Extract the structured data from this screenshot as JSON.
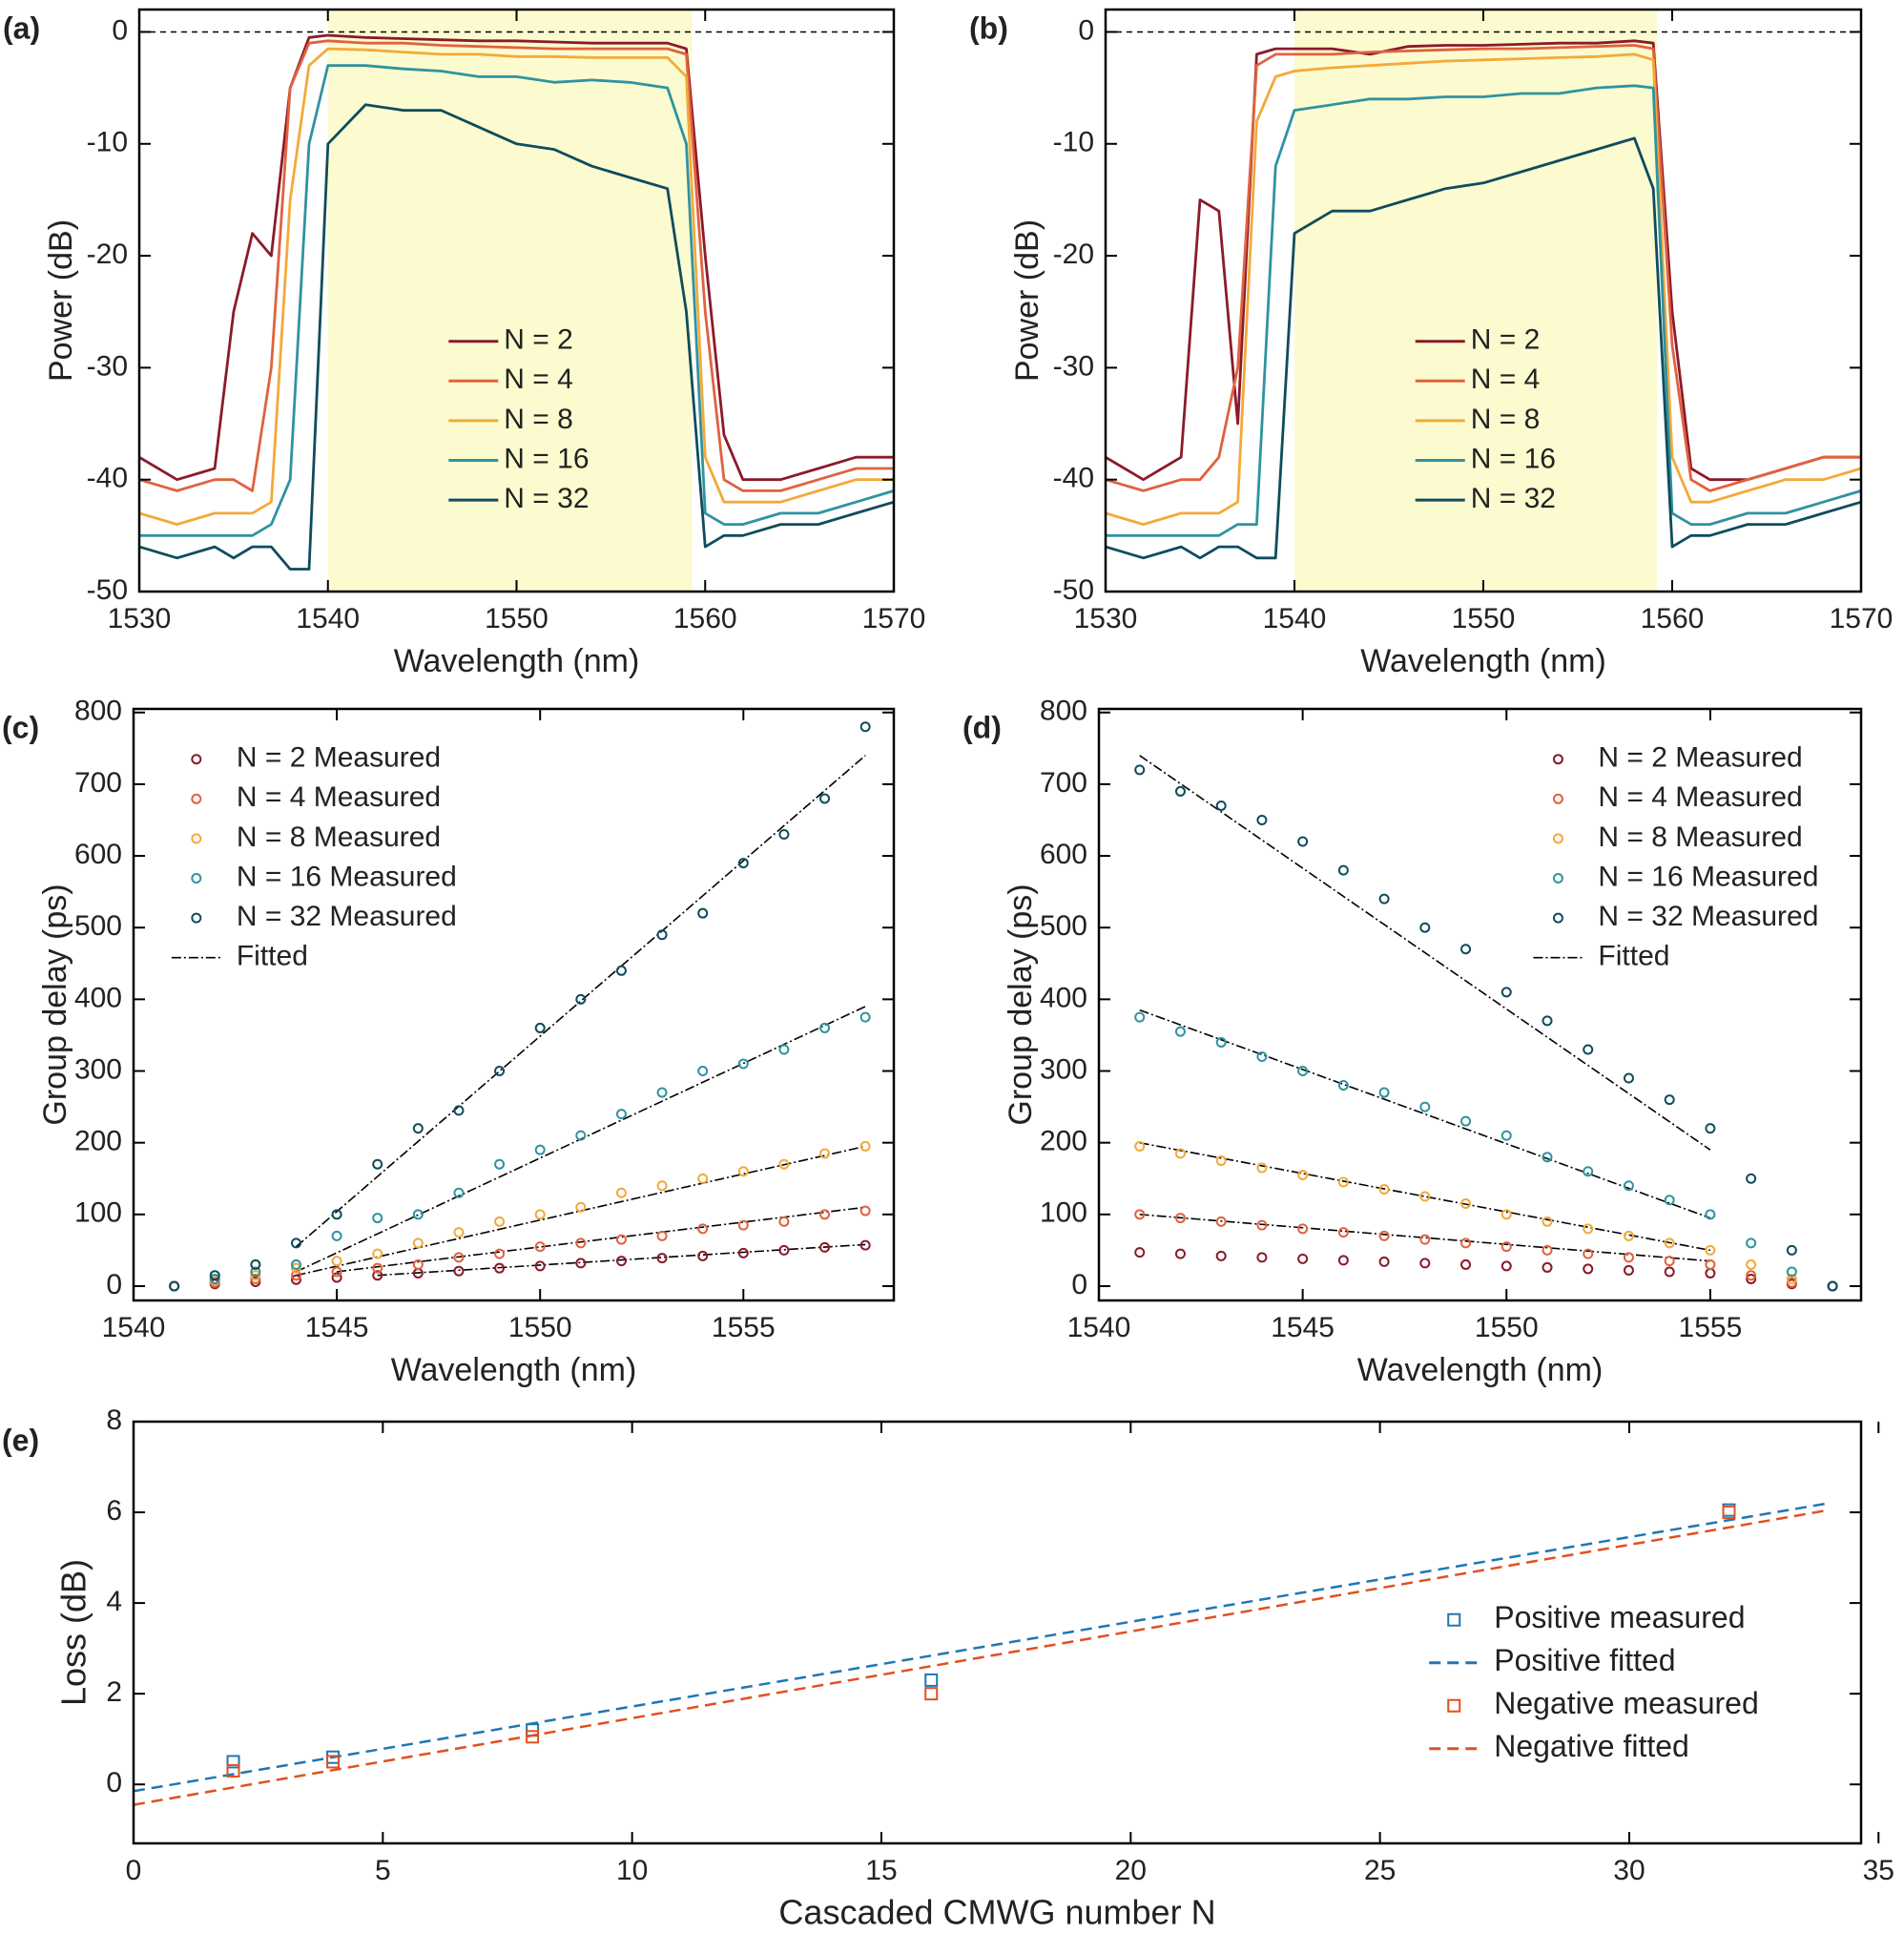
{
  "chart_data": [
    {
      "type": "line",
      "label": "(a)",
      "xlabel": "Wavelength (nm)",
      "ylabel": "Power (dB)",
      "x": [
        1530,
        1532,
        1534,
        1535,
        1536,
        1537,
        1538,
        1539,
        1540,
        1542,
        1544,
        1546,
        1548,
        1550,
        1552,
        1554,
        1556,
        1558,
        1559,
        1560,
        1561,
        1562,
        1564,
        1566,
        1568,
        1570
      ],
      "xlim": [
        1530,
        1570
      ],
      "xticks": [
        1530,
        1540,
        1550,
        1560,
        1570
      ],
      "ylim": [
        -50,
        2
      ],
      "yticks": [
        0,
        -10,
        -20,
        -30,
        -40,
        -50
      ],
      "shaded_range": [
        1540,
        1559.3
      ],
      "shade_color": "#fbfbcf",
      "reference_line": 0,
      "legend": "center",
      "series": [
        {
          "name": "N = 2",
          "color": "#8b1a2b",
          "values": [
            -38,
            -40,
            -39,
            -25,
            -18,
            -20,
            -5,
            -0.5,
            -0.3,
            -0.5,
            -0.6,
            -0.7,
            -0.8,
            -0.8,
            -0.9,
            -1,
            -1,
            -1,
            -1.5,
            -20,
            -36,
            -40,
            -40,
            -39,
            -38,
            -38
          ]
        },
        {
          "name": "N = 4",
          "color": "#e0623f",
          "values": [
            -40,
            -41,
            -40,
            -40,
            -41,
            -30,
            -5,
            -1,
            -0.8,
            -1,
            -1,
            -1.2,
            -1.3,
            -1.4,
            -1.5,
            -1.5,
            -1.5,
            -1.5,
            -2,
            -25,
            -40,
            -41,
            -41,
            -40,
            -39,
            -39
          ]
        },
        {
          "name": "N = 8",
          "color": "#f4a93a",
          "values": [
            -43,
            -44,
            -43,
            -43,
            -43,
            -42,
            -15,
            -3,
            -1.5,
            -1.6,
            -1.8,
            -2,
            -2,
            -2.2,
            -2.2,
            -2.3,
            -2.3,
            -2.3,
            -4,
            -38,
            -42,
            -42,
            -42,
            -41,
            -40,
            -40
          ]
        },
        {
          "name": "N = 16",
          "color": "#2f93a0",
          "values": [
            -45,
            -45,
            -45,
            -45,
            -45,
            -44,
            -40,
            -10,
            -3,
            -3,
            -3.3,
            -3.5,
            -4,
            -4,
            -4.5,
            -4.3,
            -4.5,
            -5,
            -10,
            -43,
            -44,
            -44,
            -43,
            -43,
            -42,
            -41
          ]
        },
        {
          "name": "N = 32",
          "color": "#0f4c5c",
          "values": [
            -46,
            -47,
            -46,
            -47,
            -46,
            -46,
            -48,
            -48,
            -10,
            -6.5,
            -7,
            -7,
            -8.5,
            -10,
            -10.5,
            -12,
            -13,
            -14,
            -25,
            -46,
            -45,
            -45,
            -44,
            -44,
            -43,
            -42
          ]
        }
      ]
    },
    {
      "type": "line",
      "label": "(b)",
      "xlabel": "Wavelength (nm)",
      "ylabel": "Power (dB)",
      "x": [
        1530,
        1532,
        1534,
        1535,
        1536,
        1537,
        1538,
        1539,
        1540,
        1542,
        1544,
        1546,
        1548,
        1550,
        1552,
        1554,
        1556,
        1558,
        1559,
        1560,
        1561,
        1562,
        1564,
        1566,
        1568,
        1570
      ],
      "xlim": [
        1530,
        1570
      ],
      "xticks": [
        1530,
        1540,
        1550,
        1560,
        1570
      ],
      "ylim": [
        -50,
        2
      ],
      "yticks": [
        0,
        -10,
        -20,
        -30,
        -40,
        -50
      ],
      "shaded_range": [
        1540,
        1559.2
      ],
      "shade_color": "#fbfbcf",
      "reference_line": 0,
      "legend": "center",
      "series": [
        {
          "name": "N = 2",
          "color": "#8b1a2b",
          "values": [
            -38,
            -40,
            -38,
            -15,
            -16,
            -35,
            -2,
            -1.5,
            -1.5,
            -1.5,
            -2,
            -1.3,
            -1.2,
            -1.2,
            -1.1,
            -1,
            -1,
            -0.8,
            -1,
            -25,
            -39,
            -40,
            -40,
            -39,
            -38,
            -38
          ]
        },
        {
          "name": "N = 4",
          "color": "#e0623f",
          "values": [
            -40,
            -41,
            -40,
            -40,
            -38,
            -30,
            -3,
            -2,
            -2,
            -2,
            -1.8,
            -1.7,
            -1.6,
            -1.5,
            -1.5,
            -1.4,
            -1.3,
            -1.2,
            -1.5,
            -28,
            -40,
            -41,
            -40,
            -39,
            -38,
            -38
          ]
        },
        {
          "name": "N = 8",
          "color": "#f4a93a",
          "values": [
            -43,
            -44,
            -43,
            -43,
            -43,
            -42,
            -8,
            -4,
            -3.5,
            -3.2,
            -3,
            -2.8,
            -2.6,
            -2.5,
            -2.4,
            -2.3,
            -2.2,
            -2,
            -2.5,
            -38,
            -42,
            -42,
            -41,
            -40,
            -40,
            -39
          ]
        },
        {
          "name": "N = 16",
          "color": "#2f93a0",
          "values": [
            -45,
            -45,
            -45,
            -45,
            -45,
            -44,
            -44,
            -12,
            -7,
            -6.5,
            -6,
            -6,
            -5.8,
            -5.8,
            -5.5,
            -5.5,
            -5,
            -4.8,
            -5,
            -43,
            -44,
            -44,
            -43,
            -43,
            -42,
            -41
          ]
        },
        {
          "name": "N = 32",
          "color": "#0f4c5c",
          "values": [
            -46,
            -47,
            -46,
            -47,
            -46,
            -46,
            -47,
            -47,
            -18,
            -16,
            -16,
            -15,
            -14,
            -13.5,
            -12.5,
            -11.5,
            -10.5,
            -9.5,
            -14,
            -46,
            -45,
            -45,
            -44,
            -44,
            -43,
            -42
          ]
        }
      ]
    },
    {
      "type": "scatter",
      "label": "(c)",
      "xlabel": "Wavelength (nm)",
      "ylabel": "Group delay (ps)",
      "x": [
        1541,
        1542,
        1543,
        1544,
        1545,
        1546,
        1547,
        1548,
        1549,
        1550,
        1551,
        1552,
        1553,
        1554,
        1555,
        1556,
        1557,
        1558
      ],
      "xlim": [
        1540,
        1558.7
      ],
      "xticks": [
        1540,
        1545,
        1550,
        1555
      ],
      "ylim": [
        -20,
        805
      ],
      "yticks": [
        0,
        100,
        200,
        300,
        400,
        500,
        600,
        700,
        800
      ],
      "legend": "upper left",
      "series": [
        {
          "name": "N = 2   Measured",
          "color": "#8b1a2b",
          "values": [
            0,
            3,
            6,
            9,
            12,
            15,
            18,
            21,
            25,
            28,
            32,
            35,
            39,
            42,
            46,
            50,
            54,
            57
          ]
        },
        {
          "name": "N = 4   Measured",
          "color": "#e0623f",
          "values": [
            0,
            5,
            10,
            15,
            20,
            25,
            30,
            40,
            45,
            55,
            60,
            65,
            70,
            80,
            85,
            90,
            100,
            105
          ]
        },
        {
          "name": "N = 8   Measured",
          "color": "#f4a93a",
          "values": [
            0,
            8,
            15,
            25,
            35,
            45,
            60,
            75,
            90,
            100,
            110,
            130,
            140,
            150,
            160,
            170,
            185,
            195
          ]
        },
        {
          "name": "N = 16 Measured",
          "color": "#2f93a0",
          "values": [
            0,
            10,
            20,
            30,
            70,
            95,
            100,
            130,
            170,
            190,
            210,
            240,
            270,
            300,
            310,
            330,
            360,
            375
          ]
        },
        {
          "name": "N = 32 Measured",
          "color": "#0f4c5c",
          "values": [
            0,
            15,
            30,
            60,
            100,
            170,
            220,
            245,
            300,
            360,
            400,
            440,
            490,
            520,
            590,
            630,
            680,
            780
          ]
        }
      ],
      "fit": {
        "name": "Fitted",
        "color": "#000000",
        "lines": [
          {
            "x": [
              1546,
              1558
            ],
            "values": [
              15,
              58
            ]
          },
          {
            "x": [
              1545,
              1558
            ],
            "values": [
              20,
              110
            ]
          },
          {
            "x": [
              1544,
              1558
            ],
            "values": [
              15,
              195
            ]
          },
          {
            "x": [
              1544,
              1558
            ],
            "values": [
              20,
              390
            ]
          },
          {
            "x": [
              1544,
              1558
            ],
            "values": [
              55,
              740
            ]
          }
        ]
      }
    },
    {
      "type": "scatter",
      "label": "(d)",
      "xlabel": "Wavelength (nm)",
      "ylabel": "Group delay (ps)",
      "x": [
        1541,
        1542,
        1543,
        1544,
        1545,
        1546,
        1547,
        1548,
        1549,
        1550,
        1551,
        1552,
        1553,
        1554,
        1555,
        1556,
        1557,
        1558
      ],
      "xlim": [
        1540,
        1558.7
      ],
      "xticks": [
        1540,
        1545,
        1550,
        1555
      ],
      "ylim": [
        -20,
        805
      ],
      "yticks": [
        0,
        100,
        200,
        300,
        400,
        500,
        600,
        700,
        800
      ],
      "legend": "upper right",
      "series": [
        {
          "name": "N = 2   Measured",
          "color": "#8b1a2b",
          "values": [
            47,
            45,
            42,
            40,
            38,
            36,
            34,
            32,
            30,
            28,
            26,
            24,
            22,
            20,
            18,
            10,
            3,
            0
          ]
        },
        {
          "name": "N = 4   Measured",
          "color": "#e0623f",
          "values": [
            100,
            95,
            90,
            85,
            80,
            75,
            70,
            65,
            60,
            55,
            50,
            45,
            40,
            35,
            30,
            15,
            5,
            0
          ]
        },
        {
          "name": "N = 8   Measured",
          "color": "#f4a93a",
          "values": [
            195,
            185,
            175,
            165,
            155,
            145,
            135,
            125,
            115,
            100,
            90,
            80,
            70,
            60,
            50,
            30,
            10,
            0
          ]
        },
        {
          "name": "N = 16 Measured",
          "color": "#2f93a0",
          "values": [
            375,
            355,
            340,
            320,
            300,
            280,
            270,
            250,
            230,
            210,
            180,
            160,
            140,
            120,
            100,
            60,
            20,
            0
          ]
        },
        {
          "name": "N = 32 Measured",
          "color": "#0f4c5c",
          "values": [
            720,
            690,
            670,
            650,
            620,
            580,
            540,
            500,
            470,
            410,
            370,
            330,
            290,
            260,
            220,
            150,
            50,
            0
          ]
        }
      ],
      "fit": {
        "name": "Fitted",
        "color": "#000000",
        "lines": [
          {
            "x": [
              1541,
              1555
            ],
            "values": [
              100,
              35
            ]
          },
          {
            "x": [
              1541,
              1555
            ],
            "values": [
              200,
              50
            ]
          },
          {
            "x": [
              1541,
              1555
            ],
            "values": [
              385,
              95
            ]
          },
          {
            "x": [
              1541,
              1555
            ],
            "values": [
              740,
              190
            ]
          }
        ]
      }
    },
    {
      "type": "scatter",
      "label": "(e)",
      "xlabel": "Cascaded CMWG number N",
      "ylabel": "Loss (dB)",
      "xlim": [
        0,
        34.65
      ],
      "xticks": [
        0,
        5,
        10,
        15,
        20,
        25,
        30,
        35
      ],
      "ylim": [
        -1.3,
        8
      ],
      "yticks": [
        0,
        2,
        4,
        6,
        8
      ],
      "legend": "lower right",
      "series": [
        {
          "name": "Positive measured",
          "color": "#1f77b4",
          "style": "square",
          "x": [
            2,
            4,
            8,
            16,
            32
          ],
          "values": [
            0.5,
            0.6,
            1.2,
            2.3,
            6.05
          ]
        },
        {
          "name": "Positive fitted",
          "color": "#1f77b4",
          "style": "dashed",
          "x": [
            0,
            34
          ],
          "values": [
            -0.15,
            6.2
          ]
        },
        {
          "name": "Negative measured",
          "color": "#e2501f",
          "style": "square",
          "x": [
            2,
            4,
            8,
            16,
            32
          ],
          "values": [
            0.3,
            0.5,
            1.05,
            2.0,
            6.0
          ]
        },
        {
          "name": "Negative fitted",
          "color": "#e2501f",
          "style": "dashed",
          "x": [
            0,
            34
          ],
          "values": [
            -0.45,
            6.05
          ]
        }
      ]
    }
  ]
}
